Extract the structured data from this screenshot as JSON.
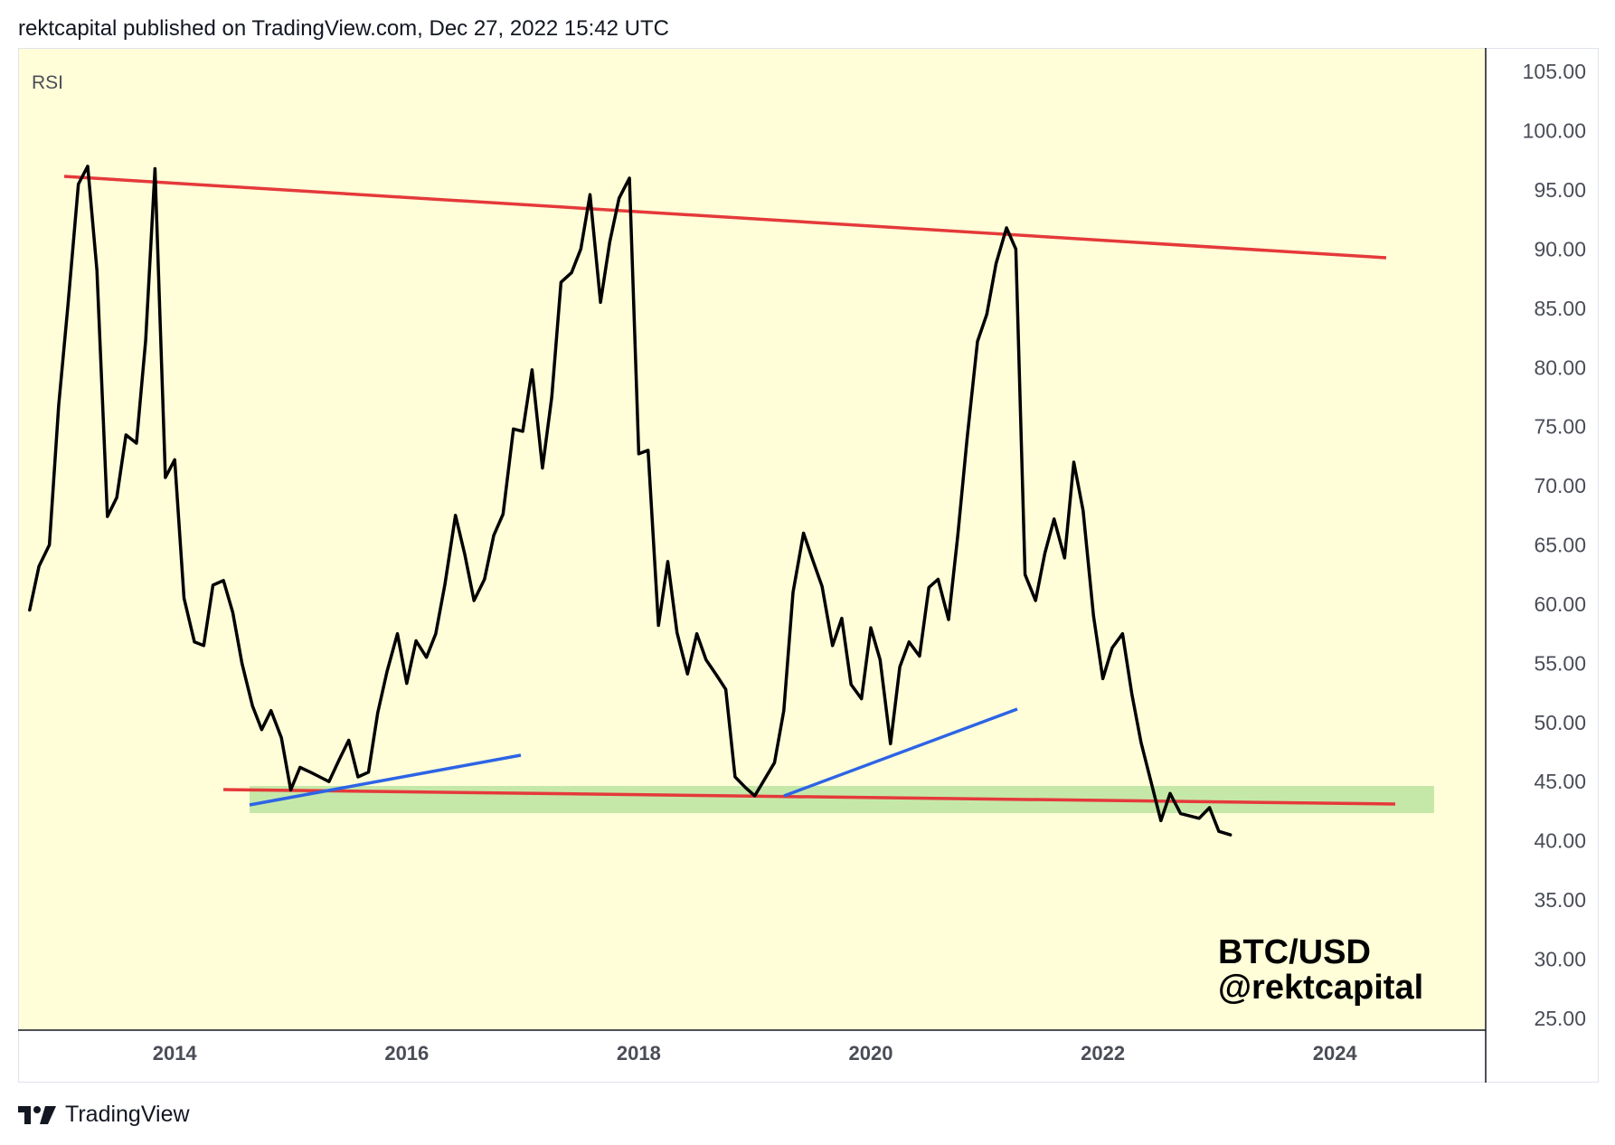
{
  "header": {
    "text": "rektcapital published on TradingView.com, Dec 27, 2022 15:42 UTC"
  },
  "footer": {
    "brand": "TradingView",
    "logo_icon": "tradingview-logo-icon"
  },
  "colors": {
    "plot_bg": "#fffed8",
    "rsi_line": "#000000",
    "resistance": "#e5393a",
    "support_line": "#e5393a",
    "trendline": "#2d64e6",
    "support_zone": "#c5e8a8",
    "axis_text": "#4a4d57"
  },
  "chart_data": {
    "type": "line",
    "title": "RSI",
    "xlabel": "",
    "ylabel": "",
    "x_ticks": [
      "2014",
      "2016",
      "2018",
      "2020",
      "2022",
      "2024"
    ],
    "y_ticks": [
      "105.00",
      "100.00",
      "95.00",
      "90.00",
      "85.00",
      "80.00",
      "75.00",
      "70.00",
      "65.00",
      "60.00",
      "55.00",
      "50.00",
      "45.00",
      "40.00",
      "35.00",
      "30.00",
      "25.00"
    ],
    "ylim": [
      24,
      107
    ],
    "xlim": [
      2012.65,
      2025.3
    ],
    "grid": false,
    "series": [
      {
        "values": [
          [
            2012.75,
            59.5
          ],
          [
            2012.83,
            63.2
          ],
          [
            2012.92,
            65.0
          ],
          [
            2013.0,
            76.8
          ],
          [
            2013.08,
            85.3
          ],
          [
            2013.17,
            95.5
          ],
          [
            2013.25,
            97.0
          ],
          [
            2013.33,
            88.2
          ],
          [
            2013.42,
            67.4
          ],
          [
            2013.5,
            69.0
          ],
          [
            2013.58,
            74.3
          ],
          [
            2013.67,
            73.6
          ],
          [
            2013.75,
            82.3
          ],
          [
            2013.83,
            96.8
          ],
          [
            2013.92,
            70.7
          ],
          [
            2014.0,
            72.2
          ],
          [
            2014.08,
            60.5
          ],
          [
            2014.17,
            56.8
          ],
          [
            2014.25,
            56.5
          ],
          [
            2014.33,
            61.6
          ],
          [
            2014.42,
            62.0
          ],
          [
            2014.5,
            59.3
          ],
          [
            2014.58,
            55.0
          ],
          [
            2014.67,
            51.4
          ],
          [
            2014.75,
            49.4
          ],
          [
            2014.83,
            51.0
          ],
          [
            2014.92,
            48.7
          ],
          [
            2015.0,
            44.3
          ],
          [
            2015.08,
            46.2
          ],
          [
            2015.17,
            45.8
          ],
          [
            2015.25,
            45.4
          ],
          [
            2015.33,
            45.0
          ],
          [
            2015.42,
            46.9
          ],
          [
            2015.5,
            48.5
          ],
          [
            2015.58,
            45.4
          ],
          [
            2015.67,
            45.8
          ],
          [
            2015.75,
            50.8
          ],
          [
            2015.83,
            54.3
          ],
          [
            2015.92,
            57.5
          ],
          [
            2016.0,
            53.3
          ],
          [
            2016.08,
            56.9
          ],
          [
            2016.17,
            55.5
          ],
          [
            2016.25,
            57.5
          ],
          [
            2016.33,
            61.7
          ],
          [
            2016.42,
            67.5
          ],
          [
            2016.5,
            64.2
          ],
          [
            2016.58,
            60.3
          ],
          [
            2016.67,
            62.1
          ],
          [
            2016.75,
            65.8
          ],
          [
            2016.83,
            67.6
          ],
          [
            2016.92,
            74.8
          ],
          [
            2017.0,
            74.6
          ],
          [
            2017.08,
            79.8
          ],
          [
            2017.17,
            71.5
          ],
          [
            2017.25,
            77.5
          ],
          [
            2017.33,
            87.2
          ],
          [
            2017.42,
            88.0
          ],
          [
            2017.5,
            90.0
          ],
          [
            2017.58,
            94.6
          ],
          [
            2017.67,
            85.5
          ],
          [
            2017.75,
            90.6
          ],
          [
            2017.83,
            94.3
          ],
          [
            2017.92,
            96.0
          ],
          [
            2018.0,
            72.7
          ],
          [
            2018.08,
            73.0
          ],
          [
            2018.17,
            58.2
          ],
          [
            2018.25,
            63.6
          ],
          [
            2018.33,
            57.6
          ],
          [
            2018.42,
            54.1
          ],
          [
            2018.5,
            57.5
          ],
          [
            2018.58,
            55.3
          ],
          [
            2018.67,
            54.0
          ],
          [
            2018.75,
            52.8
          ],
          [
            2018.83,
            45.4
          ],
          [
            2018.92,
            44.5
          ],
          [
            2019.0,
            43.8
          ],
          [
            2019.17,
            46.6
          ],
          [
            2019.25,
            51.0
          ],
          [
            2019.33,
            61.0
          ],
          [
            2019.42,
            66.0
          ],
          [
            2019.5,
            63.7
          ],
          [
            2019.58,
            61.5
          ],
          [
            2019.67,
            56.5
          ],
          [
            2019.75,
            58.8
          ],
          [
            2019.83,
            53.2
          ],
          [
            2019.92,
            52.0
          ],
          [
            2020.0,
            58.0
          ],
          [
            2020.08,
            55.3
          ],
          [
            2020.17,
            48.2
          ],
          [
            2020.25,
            54.7
          ],
          [
            2020.33,
            56.8
          ],
          [
            2020.42,
            55.6
          ],
          [
            2020.5,
            61.4
          ],
          [
            2020.58,
            62.1
          ],
          [
            2020.67,
            58.7
          ],
          [
            2020.75,
            65.8
          ],
          [
            2020.83,
            74.0
          ],
          [
            2020.92,
            82.2
          ],
          [
            2021.0,
            84.5
          ],
          [
            2021.08,
            88.8
          ],
          [
            2021.17,
            91.8
          ],
          [
            2021.25,
            90.0
          ],
          [
            2021.33,
            62.5
          ],
          [
            2021.42,
            60.3
          ],
          [
            2021.5,
            64.3
          ],
          [
            2021.58,
            67.2
          ],
          [
            2021.67,
            63.9
          ],
          [
            2021.75,
            72.0
          ],
          [
            2021.83,
            67.9
          ],
          [
            2021.92,
            59.0
          ],
          [
            2022.0,
            53.7
          ],
          [
            2022.08,
            56.3
          ],
          [
            2022.17,
            57.5
          ],
          [
            2022.25,
            52.4
          ],
          [
            2022.33,
            48.3
          ],
          [
            2022.5,
            41.7
          ],
          [
            2022.58,
            44.0
          ],
          [
            2022.67,
            42.3
          ],
          [
            2022.83,
            41.9
          ],
          [
            2022.92,
            42.8
          ],
          [
            2023.0,
            40.8
          ],
          [
            2023.1,
            40.5
          ]
        ]
      }
    ]
  }
}
